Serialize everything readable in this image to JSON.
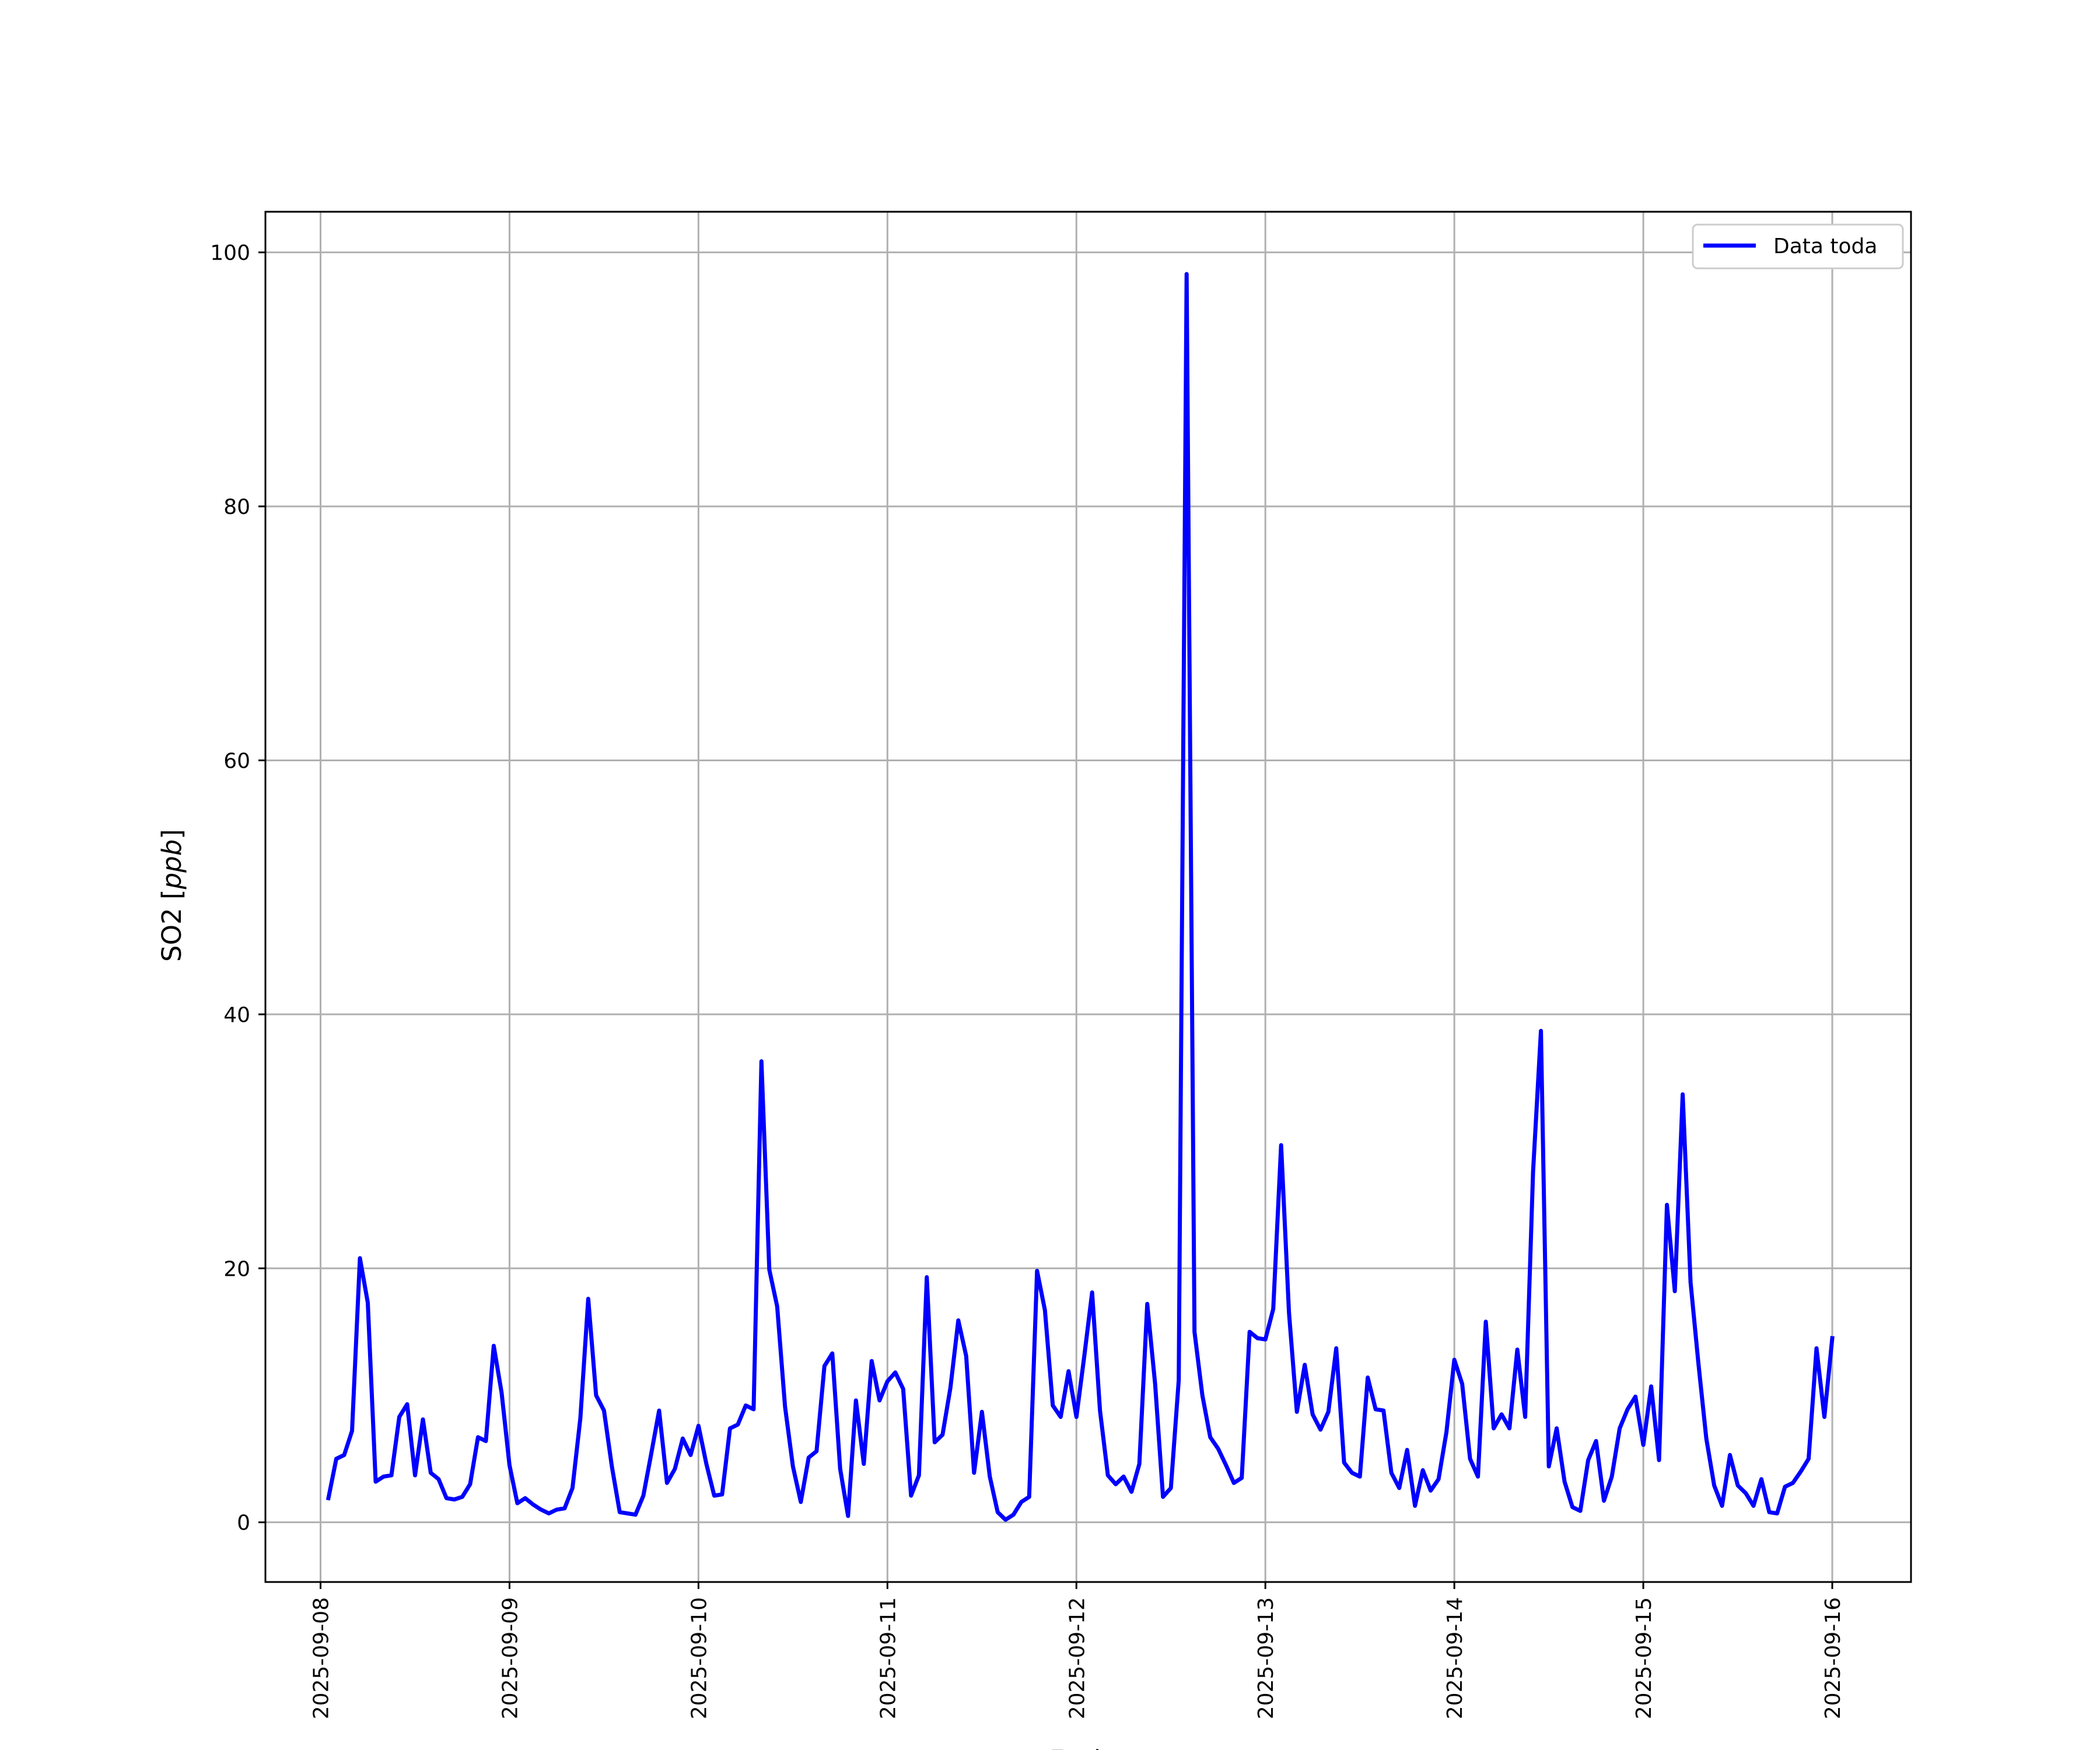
{
  "chart_data": {
    "type": "line",
    "title": "",
    "xlabel": "Fecha",
    "ylabel": "SO2 [ppb]",
    "ylabel_text": "SO2 [",
    "ylabel_unit": "ppb",
    "ylabel_close": "]",
    "xlim": [
      "2025-09-07T17:00",
      "2025-09-16T10:00"
    ],
    "ylim": [
      -4.7,
      103.2
    ],
    "grid": true,
    "legend_position": "top-right",
    "x_ticks": [
      "2025-09-08",
      "2025-09-09",
      "2025-09-10",
      "2025-09-11",
      "2025-09-12",
      "2025-09-13",
      "2025-09-14",
      "2025-09-15",
      "2025-09-16"
    ],
    "y_ticks": [
      0,
      20,
      40,
      60,
      80,
      100
    ],
    "series": [
      {
        "name": "Data toda",
        "color": "#0000ff",
        "x": [
          "2025-09-08T01:00",
          "2025-09-08T02:00",
          "2025-09-08T03:00",
          "2025-09-08T04:00",
          "2025-09-08T05:00",
          "2025-09-08T06:00",
          "2025-09-08T07:00",
          "2025-09-08T08:00",
          "2025-09-08T09:00",
          "2025-09-08T10:00",
          "2025-09-08T11:00",
          "2025-09-08T12:00",
          "2025-09-08T13:00",
          "2025-09-08T14:00",
          "2025-09-08T15:00",
          "2025-09-08T16:00",
          "2025-09-08T17:00",
          "2025-09-08T18:00",
          "2025-09-08T19:00",
          "2025-09-08T20:00",
          "2025-09-08T21:00",
          "2025-09-08T22:00",
          "2025-09-08T23:00",
          "2025-09-09T00:00",
          "2025-09-09T01:00",
          "2025-09-09T02:00",
          "2025-09-09T03:00",
          "2025-09-09T04:00",
          "2025-09-09T05:00",
          "2025-09-09T06:00",
          "2025-09-09T07:00",
          "2025-09-09T08:00",
          "2025-09-09T09:00",
          "2025-09-09T10:00",
          "2025-09-09T11:00",
          "2025-09-09T12:00",
          "2025-09-09T13:00",
          "2025-09-09T14:00",
          "2025-09-09T15:00",
          "2025-09-09T16:00",
          "2025-09-09T17:00",
          "2025-09-09T18:00",
          "2025-09-09T19:00",
          "2025-09-09T20:00",
          "2025-09-09T21:00",
          "2025-09-09T22:00",
          "2025-09-09T23:00",
          "2025-09-10T00:00",
          "2025-09-10T01:00",
          "2025-09-10T02:00",
          "2025-09-10T03:00",
          "2025-09-10T04:00",
          "2025-09-10T05:00",
          "2025-09-10T06:00",
          "2025-09-10T07:00",
          "2025-09-10T08:00",
          "2025-09-10T09:00",
          "2025-09-10T10:00",
          "2025-09-10T11:00",
          "2025-09-10T12:00",
          "2025-09-10T13:00",
          "2025-09-10T14:00",
          "2025-09-10T15:00",
          "2025-09-10T16:00",
          "2025-09-10T17:00",
          "2025-09-10T18:00",
          "2025-09-10T19:00",
          "2025-09-10T20:00",
          "2025-09-10T21:00",
          "2025-09-10T22:00",
          "2025-09-10T23:00",
          "2025-09-11T00:00",
          "2025-09-11T01:00",
          "2025-09-11T02:00",
          "2025-09-11T03:00",
          "2025-09-11T04:00",
          "2025-09-11T05:00",
          "2025-09-11T06:00",
          "2025-09-11T07:00",
          "2025-09-11T08:00",
          "2025-09-11T09:00",
          "2025-09-11T10:00",
          "2025-09-11T11:00",
          "2025-09-11T12:00",
          "2025-09-11T13:00",
          "2025-09-11T14:00",
          "2025-09-11T15:00",
          "2025-09-11T16:00",
          "2025-09-11T17:00",
          "2025-09-11T18:00",
          "2025-09-11T19:00",
          "2025-09-11T20:00",
          "2025-09-11T21:00",
          "2025-09-11T22:00",
          "2025-09-11T23:00",
          "2025-09-12T00:00",
          "2025-09-12T01:00",
          "2025-09-12T02:00",
          "2025-09-12T03:00",
          "2025-09-12T04:00",
          "2025-09-12T05:00",
          "2025-09-12T06:00",
          "2025-09-12T07:00",
          "2025-09-12T08:00",
          "2025-09-12T09:00",
          "2025-09-12T10:00",
          "2025-09-12T11:00",
          "2025-09-12T12:00",
          "2025-09-12T13:00",
          "2025-09-12T14:00",
          "2025-09-12T15:00",
          "2025-09-12T16:00",
          "2025-09-12T17:00",
          "2025-09-12T18:00",
          "2025-09-12T19:00",
          "2025-09-12T20:00",
          "2025-09-12T21:00",
          "2025-09-12T22:00",
          "2025-09-12T23:00",
          "2025-09-13T00:00",
          "2025-09-13T01:00",
          "2025-09-13T02:00",
          "2025-09-13T03:00",
          "2025-09-13T04:00",
          "2025-09-13T05:00",
          "2025-09-13T06:00",
          "2025-09-13T07:00",
          "2025-09-13T08:00",
          "2025-09-13T09:00",
          "2025-09-13T10:00",
          "2025-09-13T11:00",
          "2025-09-13T12:00",
          "2025-09-13T13:00",
          "2025-09-13T14:00",
          "2025-09-13T15:00",
          "2025-09-13T16:00",
          "2025-09-13T17:00",
          "2025-09-13T18:00",
          "2025-09-13T19:00",
          "2025-09-13T20:00",
          "2025-09-13T21:00",
          "2025-09-13T22:00",
          "2025-09-13T23:00",
          "2025-09-14T00:00",
          "2025-09-14T01:00",
          "2025-09-14T02:00",
          "2025-09-14T03:00",
          "2025-09-14T04:00",
          "2025-09-14T05:00",
          "2025-09-14T06:00",
          "2025-09-14T07:00",
          "2025-09-14T08:00",
          "2025-09-14T09:00",
          "2025-09-14T10:00",
          "2025-09-14T11:00",
          "2025-09-14T12:00",
          "2025-09-14T13:00",
          "2025-09-14T14:00",
          "2025-09-14T15:00",
          "2025-09-14T16:00",
          "2025-09-14T17:00",
          "2025-09-14T18:00",
          "2025-09-14T19:00",
          "2025-09-14T20:00",
          "2025-09-14T21:00",
          "2025-09-14T22:00",
          "2025-09-14T23:00",
          "2025-09-15T00:00",
          "2025-09-15T01:00",
          "2025-09-15T02:00",
          "2025-09-15T03:00",
          "2025-09-15T04:00",
          "2025-09-15T05:00",
          "2025-09-15T06:00",
          "2025-09-15T07:00",
          "2025-09-15T08:00",
          "2025-09-15T09:00",
          "2025-09-15T10:00",
          "2025-09-15T11:00",
          "2025-09-15T12:00",
          "2025-09-15T13:00",
          "2025-09-15T14:00",
          "2025-09-15T15:00",
          "2025-09-15T16:00",
          "2025-09-15T17:00",
          "2025-09-15T18:00",
          "2025-09-15T19:00",
          "2025-09-15T20:00",
          "2025-09-15T21:00",
          "2025-09-15T22:00",
          "2025-09-15T23:00",
          "2025-09-16T00:00"
        ],
        "values": [
          1.9,
          5.0,
          5.3,
          7.2,
          20.8,
          17.3,
          3.2,
          3.6,
          3.7,
          8.3,
          9.3,
          3.7,
          8.1,
          3.9,
          3.4,
          1.9,
          1.8,
          2.0,
          3.0,
          6.7,
          6.4,
          13.9,
          10.2,
          4.5,
          1.5,
          1.9,
          1.4,
          1.0,
          0.7,
          1.0,
          1.1,
          2.7,
          8.2,
          17.6,
          10.0,
          8.8,
          4.4,
          0.8,
          0.7,
          0.6,
          2.1,
          5.4,
          8.8,
          3.1,
          4.2,
          6.6,
          5.3,
          7.6,
          4.6,
          2.1,
          2.2,
          7.4,
          7.7,
          9.2,
          8.9,
          36.3,
          19.9,
          17.0,
          9.1,
          4.4,
          1.6,
          5.1,
          5.6,
          12.3,
          13.3,
          4.2,
          0.5,
          9.6,
          4.6,
          12.7,
          9.6,
          11.1,
          11.8,
          10.5,
          2.1,
          3.7,
          19.3,
          6.3,
          6.9,
          10.6,
          15.9,
          13.1,
          3.9,
          8.7,
          3.6,
          0.8,
          0.2,
          0.6,
          1.6,
          2.0,
          19.8,
          16.7,
          9.2,
          8.3,
          11.9,
          8.3,
          13.1,
          18.1,
          8.8,
          3.7,
          3.0,
          3.6,
          2.4,
          4.6,
          17.2,
          10.9,
          2.0,
          2.7,
          11.2,
          98.3,
          15.0,
          10.0,
          6.7,
          5.8,
          4.5,
          3.1,
          3.5,
          15.0,
          14.5,
          14.4,
          16.8,
          29.7,
          16.5,
          8.7,
          12.4,
          8.5,
          7.3,
          8.7,
          13.7,
          4.7,
          3.9,
          3.6,
          11.4,
          8.9,
          8.8,
          3.9,
          2.7,
          5.7,
          1.3,
          4.1,
          2.5,
          3.4,
          7.1,
          12.8,
          10.9,
          5.0,
          3.6,
          15.8,
          7.4,
          8.5,
          7.4,
          13.6,
          8.3,
          27.6,
          38.7,
          4.4,
          7.4,
          3.2,
          1.2,
          0.9,
          4.9,
          6.4,
          1.7,
          3.6,
          7.4,
          8.9,
          9.9,
          6.1,
          10.7,
          4.9,
          25.0,
          18.2,
          33.7,
          18.9,
          12.5,
          6.6,
          2.9,
          1.3,
          5.3,
          2.9,
          2.3,
          1.3,
          3.4,
          0.8,
          0.7,
          2.8,
          3.1,
          4.0,
          5.0,
          13.7,
          8.3,
          14.5
        ]
      }
    ]
  }
}
